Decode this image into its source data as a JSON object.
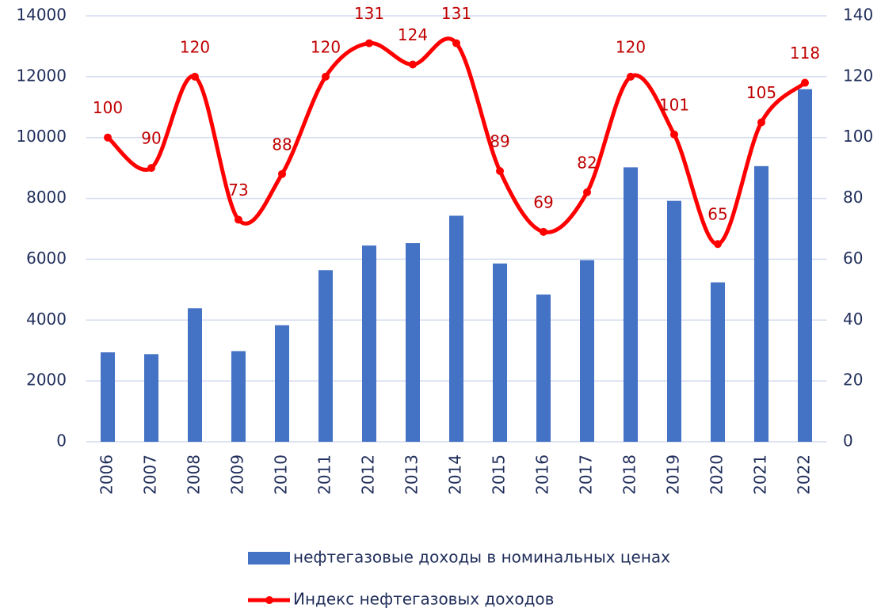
{
  "chart_data": {
    "type": "bar+line",
    "categories": [
      "2006",
      "2007",
      "2008",
      "2009",
      "2010",
      "2011",
      "2012",
      "2013",
      "2014",
      "2015",
      "2016",
      "2017",
      "2018",
      "2019",
      "2020",
      "2021",
      "2022"
    ],
    "series": [
      {
        "name": "нефтегазовые доходы в номинальных ценах",
        "type": "bar",
        "color": "#4472c4",
        "axis": "y",
        "values": [
          2940,
          2880,
          4390,
          2980,
          3830,
          5640,
          6450,
          6530,
          7430,
          5860,
          4840,
          5970,
          9020,
          7920,
          5240,
          9060,
          11590
        ]
      },
      {
        "name": "Индекс нефтегазовых доходов",
        "type": "line",
        "color": "#ff0000",
        "axis": "y2",
        "values": [
          100,
          90,
          120,
          73,
          88,
          120,
          131,
          124,
          131,
          89,
          69,
          82,
          120,
          101,
          65,
          105,
          118
        ]
      }
    ],
    "ylim": [
      0,
      14000
    ],
    "yticks": [
      0,
      2000,
      4000,
      6000,
      8000,
      10000,
      12000,
      14000
    ],
    "y2lim": [
      0,
      140
    ],
    "y2ticks": [
      0,
      20,
      40,
      60,
      80,
      100,
      120,
      140
    ],
    "grid": true,
    "legend": "bottom"
  }
}
